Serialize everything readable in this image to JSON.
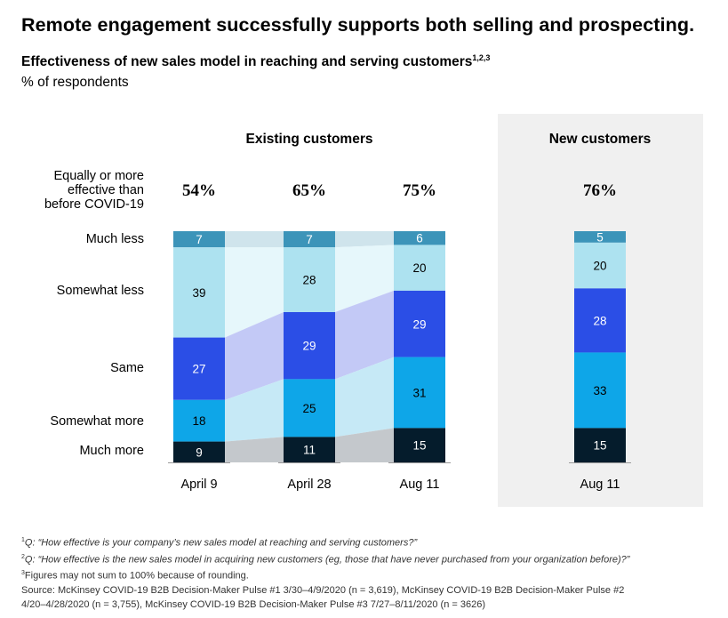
{
  "headline": "Remote engagement successfully supports both selling and prospecting.",
  "subtitle": "Effectiveness of new sales model in reaching and serving customers",
  "subtitle_sup": "1,2,3",
  "unit_label": "% of respondents",
  "colors": {
    "much_less": "#3c94b9",
    "somewhat_less": "#ade2f0",
    "same": "#2b4ee6",
    "somewhat_more": "#0ea6e8",
    "much_more": "#051c2c",
    "panel_bg": "#f0f0f0"
  },
  "chart_data": {
    "type": "bar",
    "stacked": true,
    "row_labels_header": [
      "Equally or more",
      "effective than",
      "before COVID-19"
    ],
    "categories": [
      "Much less",
      "Somewhat less",
      "Same",
      "Somewhat more",
      "Much more"
    ],
    "groups": [
      {
        "title": "Existing customers",
        "bars": [
          {
            "label": "April 9",
            "summary": "54%",
            "values": {
              "Much less": 7,
              "Somewhat less": 39,
              "Same": 27,
              "Somewhat more": 18,
              "Much more": 9
            }
          },
          {
            "label": "April 28",
            "summary": "65%",
            "values": {
              "Much less": 7,
              "Somewhat less": 28,
              "Same": 29,
              "Somewhat more": 25,
              "Much more": 11
            }
          },
          {
            "label": "Aug 11",
            "summary": "75%",
            "values": {
              "Much less": 6,
              "Somewhat less": 20,
              "Same": 29,
              "Somewhat more": 31,
              "Much more": 15
            }
          }
        ]
      },
      {
        "title": "New customers",
        "bars": [
          {
            "label": "Aug 11",
            "summary": "76%",
            "values": {
              "Much less": 5,
              "Somewhat less": 20,
              "Same": 28,
              "Somewhat more": 33,
              "Much more": 15
            }
          }
        ]
      }
    ]
  },
  "footnotes": {
    "fn1_num": "1",
    "fn1_text": "Q: “How effective is your company’s new sales model at reaching and serving customers?”",
    "fn2_num": "2",
    "fn2_text": "Q: “How effective is the new sales model in acquiring new customers (eg, those that have never purchased from your organization before)?”",
    "fn3_num": "3",
    "fn3_text": "Figures may not sum to 100% because of rounding.",
    "source_line1": "Source: McKinsey COVID-19 B2B Decision-Maker Pulse #1 3/30–4/9/2020 (n =  3,619), McKinsey COVID-19 B2B Decision-Maker Pulse #2",
    "source_line2": "4/20–4/28/2020 (n = 3,755), McKinsey COVID-19 B2B Decision-Maker Pulse #3 7/27–8/11/2020 (n = 3626)"
  }
}
